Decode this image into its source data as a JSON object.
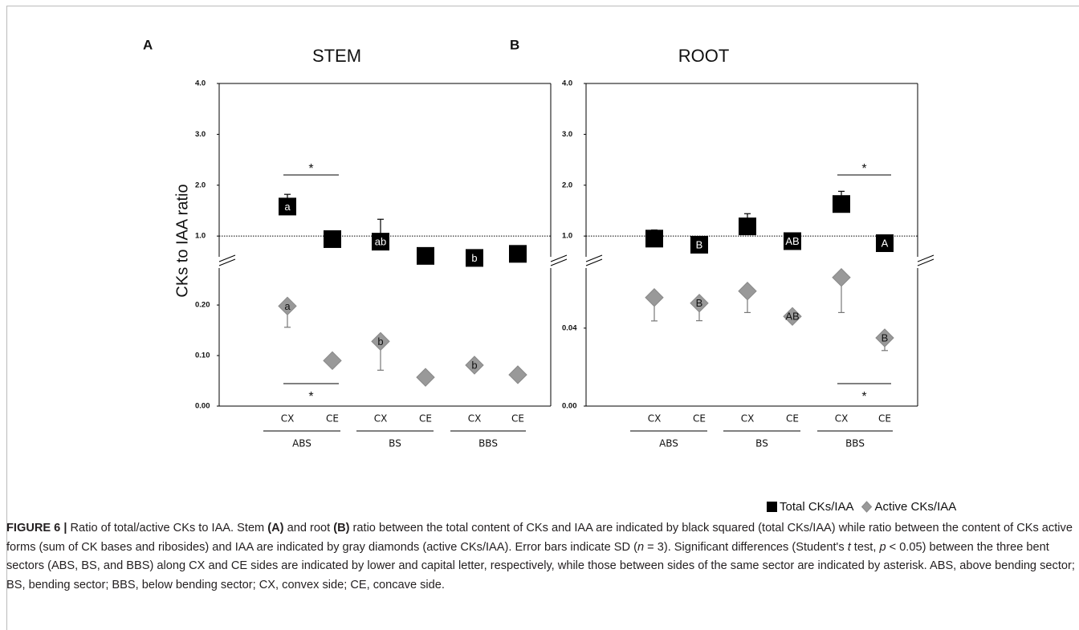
{
  "chart_data": [
    {
      "type": "dot",
      "panel": "A",
      "title": "STEM",
      "y_label": "CKs to IAA ratio",
      "categories": [
        "CX",
        "CE",
        "CX",
        "CE",
        "CX",
        "CE"
      ],
      "groups": [
        "ABS",
        "BS",
        "BBS"
      ],
      "upper_ylim": [
        0.45,
        4.0
      ],
      "upper_yticks": [
        {
          "value": 1,
          "label": "1.0"
        },
        {
          "value": 2,
          "label": "2.0"
        },
        {
          "value": 3,
          "label": "3.0"
        },
        {
          "value": 4,
          "label": "4.0"
        }
      ],
      "lower_ylim": [
        0,
        0.27
      ],
      "lower_yticks": [
        {
          "value": 0,
          "label": "0.00"
        },
        {
          "value": 0.1,
          "label": "0.10"
        },
        {
          "value": 0.2,
          "label": "0.20"
        }
      ],
      "reference_line": 1.0,
      "series": [
        {
          "name": "Total CKs/IAA",
          "color": "#000000",
          "marker": "square",
          "segment": "upper",
          "error_direction": "up",
          "values": [
            1.58,
            0.94,
            0.89,
            0.61,
            0.57,
            0.65
          ],
          "errors": [
            0.24,
            null,
            0.44,
            null,
            null,
            null
          ],
          "labels": [
            "a",
            null,
            "ab",
            null,
            "b",
            null
          ]
        },
        {
          "name": "Active CKs/IAA",
          "color": "#999999",
          "marker": "diamond",
          "segment": "lower",
          "error_direction": "down",
          "values": [
            0.198,
            0.09,
            0.128,
            0.057,
            0.081,
            0.062
          ],
          "errors": [
            0.042,
            null,
            0.057,
            null,
            null,
            null
          ],
          "labels": [
            "a",
            null,
            "b",
            null,
            "b",
            null
          ]
        }
      ],
      "significance": [
        {
          "segment": "upper",
          "group": "ABS",
          "label": "*"
        },
        {
          "segment": "lower",
          "group": "ABS",
          "label": "*"
        }
      ]
    },
    {
      "type": "dot",
      "panel": "B",
      "title": "ROOT",
      "categories": [
        "CX",
        "CE",
        "CX",
        "CE",
        "CX",
        "CE"
      ],
      "groups": [
        "ABS",
        "BS",
        "BBS"
      ],
      "upper_ylim": [
        0.45,
        4.0
      ],
      "upper_yticks": [
        {
          "value": 1,
          "label": "1.0"
        },
        {
          "value": 2,
          "label": "2.0"
        },
        {
          "value": 3,
          "label": "3.0"
        },
        {
          "value": 4,
          "label": "4.0"
        }
      ],
      "lower_ylim": [
        0,
        0.07
      ],
      "lower_yticks": [
        {
          "value": 0,
          "label": "0.00"
        },
        {
          "value": 0.04,
          "label": "0.04"
        }
      ],
      "reference_line": 1.0,
      "series": [
        {
          "name": "Total CKs/IAA",
          "color": "#000000",
          "marker": "square",
          "segment": "upper",
          "error_direction": "up",
          "values": [
            0.95,
            0.83,
            1.19,
            0.9,
            1.63,
            0.86
          ],
          "errors": [
            0.17,
            0.16,
            0.25,
            null,
            0.25,
            null
          ],
          "labels": [
            null,
            "B",
            null,
            "AB",
            null,
            "A"
          ]
        },
        {
          "name": "Active CKs/IAA",
          "color": "#999999",
          "marker": "diamond",
          "segment": "lower",
          "error_direction": "down",
          "values": [
            0.0557,
            0.0528,
            0.059,
            0.046,
            0.066,
            0.035
          ],
          "errors": [
            0.012,
            0.009,
            0.011,
            null,
            0.018,
            0.0065
          ],
          "labels": [
            null,
            "B",
            null,
            "AB",
            null,
            "B"
          ]
        }
      ],
      "significance": [
        {
          "segment": "upper",
          "group": "BBS",
          "label": "*"
        },
        {
          "segment": "lower",
          "group": "BBS",
          "label": "*"
        }
      ]
    }
  ],
  "caption": [
    {
      "text": "FIGURE 6 |",
      "style": "bold"
    },
    {
      "text": " Ratio of total/active CKs to IAA. Stem ",
      "style": "normal"
    },
    {
      "text": "(A)",
      "style": "bold"
    },
    {
      "text": " and root ",
      "style": "normal"
    },
    {
      "text": "(B)",
      "style": "bold"
    },
    {
      "text": " ratio between the total content of CKs and IAA are indicated by black squared (total CKs/IAA) while ratio between the content of CKs active forms (sum of CK bases and ribosides) and IAA are indicated by gray diamonds (active CKs/IAA). Error bars indicate SD (",
      "style": "normal"
    },
    {
      "text": "n",
      "style": "italic"
    },
    {
      "text": " = 3). Significant differences (Student's ",
      "style": "normal"
    },
    {
      "text": "t",
      "style": "italic"
    },
    {
      "text": " test, ",
      "style": "normal"
    },
    {
      "text": "p",
      "style": "italic"
    },
    {
      "text": " < 0.05) between the three bent sectors (ABS, BS, and BBS) along CX and CE sides are indicated by lower and capital letter, respectively, while those between sides of the same sector are indicated by asterisk. ABS, above bending sector; BS, bending sector; BBS, below bending sector; CX, convex side; CE, concave side.",
      "style": "normal"
    }
  ]
}
